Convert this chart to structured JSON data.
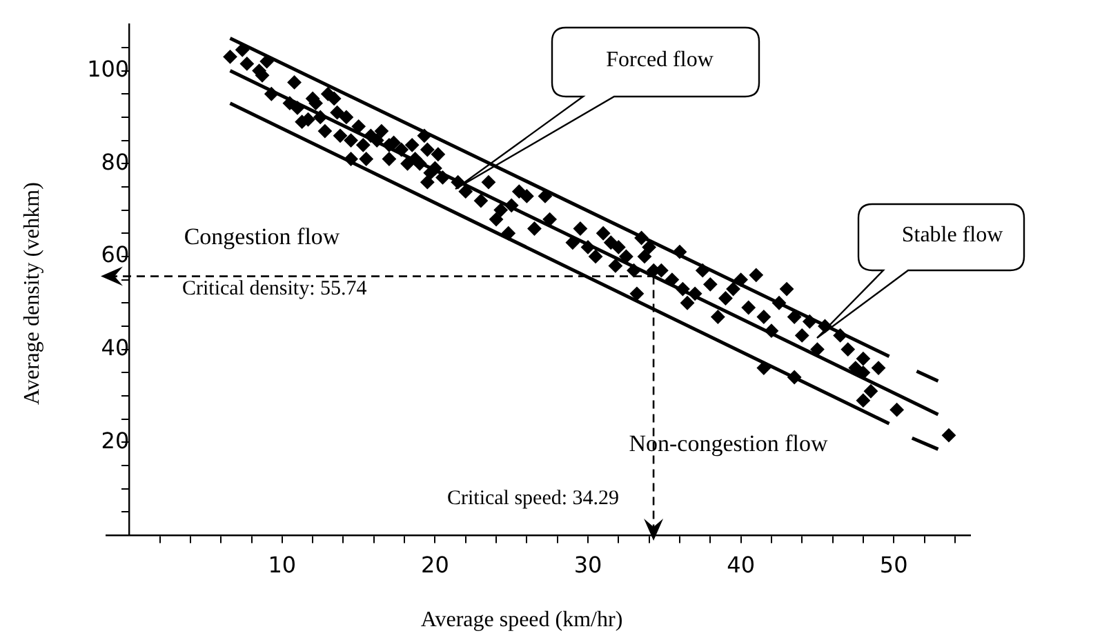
{
  "chart_data": {
    "type": "scatter",
    "xlabel": "Average speed (km/hr)",
    "ylabel": "Average density (vehkm)",
    "xlim": [
      -1.5,
      55
    ],
    "ylim": [
      0,
      110
    ],
    "xticks": [
      {
        "value": 2,
        "label": null
      },
      {
        "value": 4,
        "label": null
      },
      {
        "value": 6,
        "label": null
      },
      {
        "value": 8,
        "label": null
      },
      10,
      {
        "value": 12,
        "label": null
      },
      {
        "value": 14,
        "label": null
      },
      {
        "value": 16,
        "label": null
      },
      {
        "value": 18,
        "label": null
      },
      20,
      {
        "value": 22,
        "label": null
      },
      {
        "value": 24,
        "label": null
      },
      {
        "value": 26,
        "label": null
      },
      {
        "value": 28,
        "label": null
      },
      30,
      {
        "value": 32,
        "label": null
      },
      {
        "value": 34,
        "label": null
      },
      {
        "value": 36,
        "label": null
      },
      {
        "value": 38,
        "label": null
      },
      40,
      {
        "value": 42,
        "label": null
      },
      {
        "value": 44,
        "label": null
      },
      {
        "value": 46,
        "label": null
      },
      {
        "value": 48,
        "label": null
      },
      50,
      {
        "value": 52,
        "label": null
      },
      {
        "value": 54,
        "label": null
      }
    ],
    "yticks": [
      {
        "value": 5,
        "label": null
      },
      {
        "value": 10,
        "label": null
      },
      {
        "value": 15,
        "label": null
      },
      20,
      {
        "value": 25,
        "label": null
      },
      {
        "value": 30,
        "label": null
      },
      {
        "value": 35,
        "label": null
      },
      40,
      {
        "value": 45,
        "label": null
      },
      {
        "value": 50,
        "label": null
      },
      {
        "value": 55,
        "label": null
      },
      60,
      {
        "value": 65,
        "label": null
      },
      {
        "value": 70,
        "label": null
      },
      {
        "value": 75,
        "label": null
      },
      80,
      {
        "value": 85,
        "label": null
      },
      {
        "value": 90,
        "label": null
      },
      {
        "value": 95,
        "label": null
      },
      100,
      {
        "value": 105,
        "label": null
      }
    ],
    "series": [
      {
        "type": "scatter",
        "color": "#000000",
        "marker": "diamond",
        "x": [
          6.6,
          7.4,
          7.7,
          8.5,
          9,
          8.7,
          9.3,
          10.8,
          10.5,
          11,
          11.3,
          11.7,
          12,
          12.2,
          12.5,
          12.8,
          13,
          13.4,
          13.6,
          13.8,
          14.2,
          14.5,
          15,
          15.3,
          15.5,
          15.8,
          16.2,
          16.5,
          17,
          17.3,
          17.8,
          18.2,
          18.5,
          18.7,
          19,
          19.3,
          19.5,
          19.7,
          20,
          20.2,
          20.5,
          19.5,
          17,
          14.5,
          21.5,
          22,
          23,
          23.5,
          24,
          24.3,
          25,
          25.5,
          26,
          26.5,
          27.2,
          27.5,
          24.8,
          29,
          29.5,
          30,
          30.5,
          31,
          31.5,
          31.8,
          32,
          32.5,
          33,
          33.5,
          33.7,
          34,
          34.3,
          34.8,
          33.2,
          35.5,
          36,
          36.2,
          36.5,
          37,
          37.5,
          38,
          38.5,
          39,
          39.5,
          40,
          40.5,
          41,
          41.5,
          42,
          42.5,
          43,
          43.5,
          44,
          44.5,
          41.5,
          43.5,
          45,
          45.5,
          46.5,
          47.5,
          48,
          48,
          48.5,
          48,
          49,
          50.2,
          53.6,
          47
        ],
        "values": [
          103,
          104.5,
          101.5,
          100,
          102,
          99,
          95,
          97.5,
          93,
          92,
          89,
          89.5,
          94,
          93,
          90,
          87,
          95,
          94,
          91,
          86,
          90,
          85,
          88,
          84,
          81,
          86,
          85,
          87,
          84,
          84.5,
          83,
          80,
          84,
          81,
          80,
          86,
          83,
          78,
          79,
          82,
          77,
          76,
          81,
          81,
          76,
          74,
          72,
          76,
          68,
          70,
          71,
          74,
          73,
          66,
          73,
          68,
          65,
          63,
          66,
          62,
          60,
          65,
          63,
          58,
          62,
          60,
          57,
          64,
          60,
          62,
          57,
          57,
          52,
          55,
          61,
          53,
          50,
          52,
          57,
          54,
          47,
          51,
          53,
          55,
          49,
          56,
          47,
          44,
          50,
          53,
          47,
          43,
          46,
          36,
          34,
          40,
          45,
          43,
          36,
          35,
          38,
          31,
          29,
          36,
          27,
          21.5,
          40
        ]
      },
      {
        "type": "line",
        "color": "#000000",
        "x": [
          6.6,
          52.9
        ],
        "values": [
          100,
          26
        ]
      },
      {
        "type": "line",
        "color": "#000000",
        "x": [
          6.6,
          49.7
        ],
        "values": [
          107,
          38.5
        ]
      },
      {
        "type": "line",
        "color": "#000000",
        "x": [
          51.5,
          52.9
        ],
        "values": [
          35.3,
          33.2
        ]
      },
      {
        "type": "line",
        "color": "#000000",
        "x": [
          6.6,
          49.7
        ],
        "values": [
          93,
          24
        ]
      },
      {
        "type": "line",
        "color": "#000000",
        "x": [
          51.2,
          52.9
        ],
        "values": [
          20.9,
          18.5
        ]
      }
    ],
    "ref_lines": [
      {
        "axis": "y",
        "value": 55.74,
        "label": "Critical density: 55.74",
        "color": "#000000",
        "line_style": "dashed"
      },
      {
        "axis": "x",
        "value": 34.29,
        "label": "Critical speed: 34.29",
        "color": "#000000",
        "line_style": "dashed"
      }
    ],
    "annotations": [
      "Forced flow",
      "Stable flow",
      "Congestion flow",
      "Non-congestion flow"
    ]
  }
}
